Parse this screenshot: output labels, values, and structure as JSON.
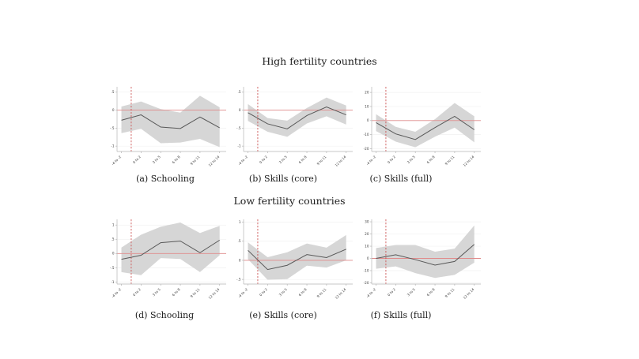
{
  "figure": {
    "group_titles": {
      "high": "High fertility countries",
      "low": "Low fertility countries"
    },
    "colors": {
      "band": "#d6d6d6",
      "line": "#585858",
      "zero_line": "#e08b8b",
      "event_line": "#c94848",
      "axis": "#b5b5b5",
      "grid": "#f1f1f1",
      "tick_text": "#3a3a3a"
    }
  },
  "chart_data": [
    {
      "type": "line",
      "panel": "a",
      "caption": "(a) Schooling",
      "group": "High fertility countries",
      "x": [
        "-4 to -2",
        "0 to 2",
        "3 to 5",
        "6 to 8",
        "9 to 11",
        "12 to 14"
      ],
      "series": [
        {
          "name": "estimate",
          "values": [
            -0.28,
            -0.13,
            -0.47,
            -0.51,
            -0.19,
            -0.49
          ]
        },
        {
          "name": "ci_upper",
          "values": [
            0.1,
            0.24,
            0.03,
            -0.07,
            0.4,
            0.08
          ]
        },
        {
          "name": "ci_lower",
          "values": [
            -0.64,
            -0.52,
            -0.92,
            -0.9,
            -0.8,
            -1.03
          ]
        }
      ],
      "y_ticks": [
        0.5,
        0,
        -0.5,
        -1
      ],
      "y_tick_labels": [
        ".5",
        "0",
        "-.5",
        "-1"
      ],
      "ylim": [
        0.65,
        -1.15
      ],
      "ref_y": 0,
      "vline_between_bins": [
        0,
        1
      ]
    },
    {
      "type": "line",
      "panel": "b",
      "caption": "(b) Skills (core)",
      "group": "High fertility countries",
      "x": [
        "-4 to -2",
        "0 to 2",
        "3 to 5",
        "6 to 8",
        "9 to 11",
        "12 to 14"
      ],
      "series": [
        {
          "name": "estimate",
          "values": [
            -0.07,
            -0.38,
            -0.52,
            -0.15,
            0.09,
            -0.13
          ]
        },
        {
          "name": "ci_upper",
          "values": [
            0.17,
            -0.22,
            -0.29,
            0.06,
            0.35,
            0.13
          ]
        },
        {
          "name": "ci_lower",
          "values": [
            -0.3,
            -0.6,
            -0.74,
            -0.37,
            -0.17,
            -0.4
          ]
        }
      ],
      "y_ticks": [
        0.5,
        0,
        -0.5,
        -1
      ],
      "y_tick_labels": [
        ".5",
        "0",
        "-.5",
        "-1"
      ],
      "ylim": [
        0.65,
        -1.15
      ],
      "ref_y": 0,
      "vline_between_bins": [
        0,
        1
      ]
    },
    {
      "type": "line",
      "panel": "c",
      "caption": "(c) Skills (full)",
      "group": "High fertility countries",
      "x": [
        "-4 to -2",
        "0 to 2",
        "3 to 5",
        "6 to 8",
        "9 to 11",
        "12 to 14"
      ],
      "series": [
        {
          "name": "estimate",
          "values": [
            -1.5,
            -9.5,
            -13.5,
            -5,
            3,
            -6.5
          ]
        },
        {
          "name": "ci_upper",
          "values": [
            4.5,
            -4.5,
            -8,
            1,
            12.5,
            3
          ]
        },
        {
          "name": "ci_lower",
          "values": [
            -7.5,
            -15,
            -19,
            -11.5,
            -5,
            -15.5
          ]
        }
      ],
      "y_ticks": [
        20,
        10,
        0,
        -10,
        -20
      ],
      "y_tick_labels": [
        "20",
        "10",
        "0",
        "-10",
        "-20"
      ],
      "ylim": [
        24,
        -22
      ],
      "ref_y": 0,
      "vline_between_bins": [
        0,
        1
      ]
    },
    {
      "type": "line",
      "panel": "d",
      "caption": "(d) Schooling",
      "group": "Low fertility countries",
      "x": [
        "-4 to -2",
        "0 to 2",
        "3 to 5",
        "6 to 8",
        "9 to 11",
        "12 to 14"
      ],
      "series": [
        {
          "name": "estimate",
          "values": [
            -0.2,
            -0.06,
            0.38,
            0.44,
            0.03,
            0.47
          ]
        },
        {
          "name": "ci_upper",
          "values": [
            0.21,
            0.66,
            0.94,
            1.09,
            0.72,
            0.97
          ]
        },
        {
          "name": "ci_lower",
          "values": [
            -0.65,
            -0.76,
            -0.16,
            -0.19,
            -0.65,
            -0.06
          ]
        }
      ],
      "y_ticks": [
        1,
        0.5,
        0,
        -0.5,
        -1
      ],
      "y_tick_labels": [
        "1",
        ".5",
        "0",
        "-.5",
        "-1"
      ],
      "ylim": [
        1.2,
        -1.07
      ],
      "ref_y": 0,
      "vline_between_bins": [
        0,
        1
      ]
    },
    {
      "type": "line",
      "panel": "e",
      "caption": "(e) Skills (core)",
      "group": "Low fertility countries",
      "x": [
        "-4 to -2",
        "0 to 2",
        "3 to 5",
        "6 to 8",
        "9 to 11",
        "12 to 14"
      ],
      "series": [
        {
          "name": "estimate",
          "values": [
            0.26,
            -0.24,
            -0.13,
            0.15,
            0.07,
            0.29
          ]
        },
        {
          "name": "ci_upper",
          "values": [
            0.47,
            0.08,
            0.21,
            0.44,
            0.33,
            0.66
          ]
        },
        {
          "name": "ci_lower",
          "values": [
            0.03,
            -0.51,
            -0.49,
            -0.14,
            -0.19,
            0.0
          ]
        }
      ],
      "y_ticks": [
        1,
        0.5,
        0,
        -0.5
      ],
      "y_tick_labels": [
        "1",
        ".5",
        "0",
        "-.5"
      ],
      "ylim": [
        1.07,
        -0.62
      ],
      "ref_y": 0,
      "vline_between_bins": [
        0,
        1
      ]
    },
    {
      "type": "line",
      "panel": "f",
      "caption": "(f) Skills (full)",
      "group": "Low fertility countries",
      "x": [
        "-4 to -2",
        "0 to 2",
        "3 to 5",
        "6 to 8",
        "9 to 11",
        "12 to 14"
      ],
      "series": [
        {
          "name": "estimate",
          "values": [
            0,
            3,
            -1,
            -5.5,
            -2.5,
            11.5
          ]
        },
        {
          "name": "ci_upper",
          "values": [
            8.5,
            11,
            11,
            5.5,
            8,
            27
          ]
        },
        {
          "name": "ci_lower",
          "values": [
            -8.5,
            -6.5,
            -12,
            -16,
            -13.5,
            -3.5
          ]
        }
      ],
      "y_ticks": [
        30,
        20,
        10,
        0,
        -10,
        -20
      ],
      "y_tick_labels": [
        "30",
        "20",
        "10",
        "0",
        "-10",
        "-20"
      ],
      "ylim": [
        32,
        -21
      ],
      "ref_y": 0,
      "vline_between_bins": [
        0,
        1
      ]
    }
  ]
}
